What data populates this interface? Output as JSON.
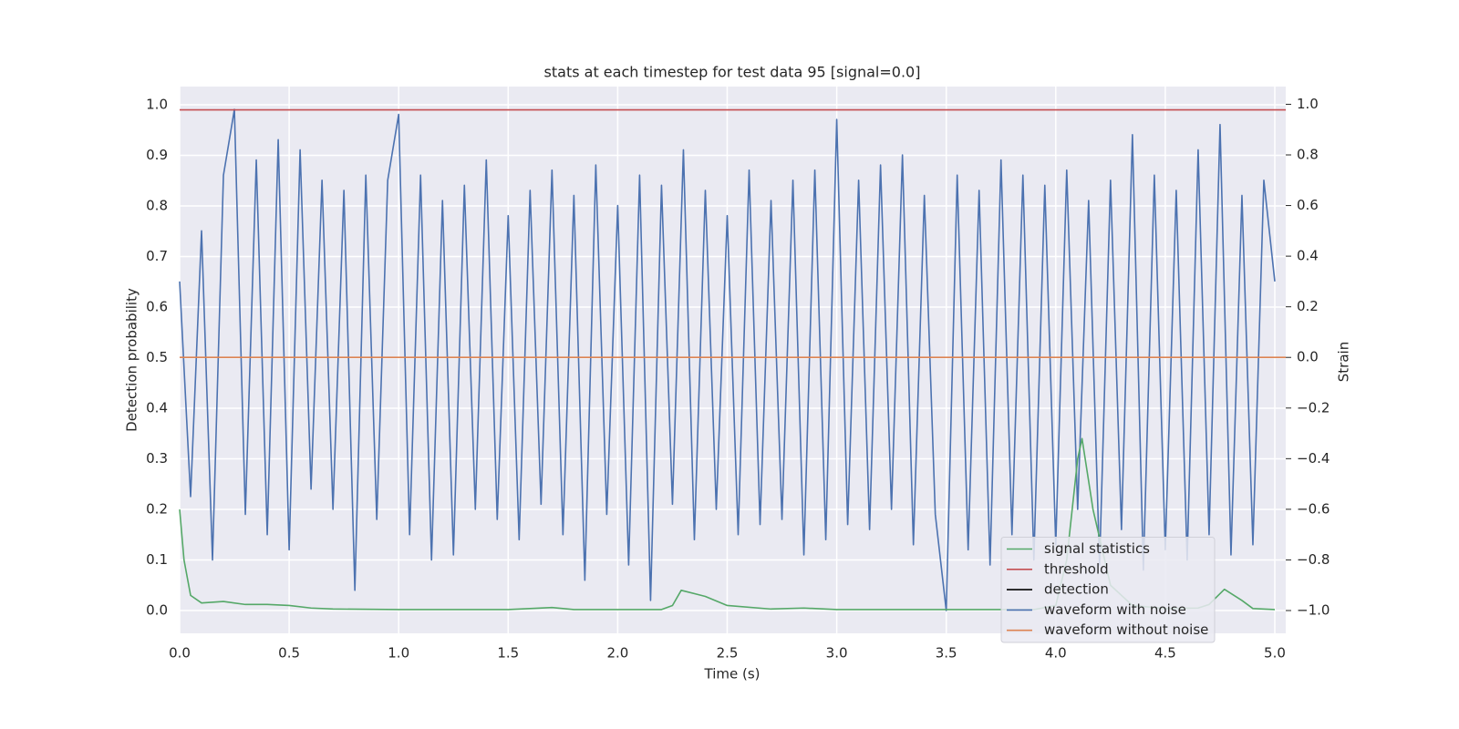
{
  "chart_data": {
    "type": "line",
    "title": "stats at each timestep for test data 95 [signal=0.0]",
    "xlabel": "Time (s)",
    "ylabel": "Detection probability",
    "y2label": "Strain",
    "xlim": [
      0,
      5.05
    ],
    "ylim": [
      -0.045,
      1.036
    ],
    "y2lim": [
      -1.09,
      1.07
    ],
    "xticks": [
      {
        "value": 0,
        "label": "0.0"
      },
      {
        "value": 0.5,
        "label": "0.5"
      },
      {
        "value": 1,
        "label": "1.0"
      },
      {
        "value": 1.5,
        "label": "1.5"
      },
      {
        "value": 2,
        "label": "2.0"
      },
      {
        "value": 2.5,
        "label": "2.5"
      },
      {
        "value": 3,
        "label": "3.0"
      },
      {
        "value": 3.5,
        "label": "3.5"
      },
      {
        "value": 4,
        "label": "4.0"
      },
      {
        "value": 4.5,
        "label": "4.5"
      },
      {
        "value": 5,
        "label": "5.0"
      }
    ],
    "yticks": [
      {
        "value": 0,
        "label": "0.0"
      },
      0.1,
      0.2,
      0.3,
      0.4,
      0.5,
      0.6,
      0.7,
      0.8,
      0.9,
      {
        "value": 1,
        "label": "1.0"
      }
    ],
    "y2ticks": [
      {
        "value": -1,
        "label": "−1.0"
      },
      {
        "value": -0.8,
        "label": "−0.8"
      },
      {
        "value": -0.6,
        "label": "−0.6"
      },
      {
        "value": -0.4,
        "label": "−0.4"
      },
      {
        "value": -0.2,
        "label": "−0.2"
      },
      {
        "value": 0,
        "label": "0.0"
      },
      0.2,
      0.4,
      0.6,
      0.8,
      {
        "value": 1,
        "label": "1.0"
      }
    ],
    "grid": true,
    "legend": "lower right",
    "series": [
      {
        "name": "signal statistics",
        "color": "#55a868",
        "x": [
          0,
          0.02,
          0.05,
          0.1,
          0.2,
          0.3,
          0.4,
          0.5,
          0.6,
          0.7,
          1.0,
          1.5,
          1.7,
          1.8,
          2.2,
          2.25,
          2.29,
          2.4,
          2.5,
          2.7,
          2.85,
          3.0,
          3.5,
          3.9,
          4.0,
          4.05,
          4.1,
          4.12,
          4.17,
          4.25,
          4.35,
          4.5,
          4.65,
          4.7,
          4.77,
          4.85,
          4.9,
          5.0
        ],
        "values": [
          0.2,
          0.1,
          0.03,
          0.015,
          0.018,
          0.012,
          0.012,
          0.01,
          0.005,
          0.003,
          0.002,
          0.002,
          0.006,
          0.002,
          0.002,
          0.01,
          0.04,
          0.028,
          0.01,
          0.003,
          0.005,
          0.002,
          0.002,
          0.002,
          0.01,
          0.1,
          0.3,
          0.34,
          0.2,
          0.05,
          0.01,
          0.004,
          0.005,
          0.012,
          0.042,
          0.02,
          0.004,
          0.002
        ]
      },
      {
        "name": "threshold",
        "color": "#c44e52",
        "hline": 0.99
      },
      {
        "name": "detection",
        "color": "#000000"
      },
      {
        "name": "waveform with noise",
        "color": "#4c72b0",
        "axis": "y2",
        "x": [
          0,
          0.05,
          0.1,
          0.15,
          0.2,
          0.25,
          0.3,
          0.35,
          0.4,
          0.45,
          0.5,
          0.55,
          0.6,
          0.65,
          0.7,
          0.75,
          0.8,
          0.85,
          0.9,
          0.95,
          1.0,
          1.05,
          1.1,
          1.15,
          1.2,
          1.25,
          1.3,
          1.35,
          1.4,
          1.45,
          1.5,
          1.55,
          1.6,
          1.65,
          1.7,
          1.75,
          1.8,
          1.85,
          1.9,
          1.95,
          2.0,
          2.05,
          2.1,
          2.15,
          2.2,
          2.25,
          2.3,
          2.35,
          2.4,
          2.45,
          2.5,
          2.55,
          2.6,
          2.65,
          2.7,
          2.75,
          2.8,
          2.85,
          2.9,
          2.95,
          3.0,
          3.05,
          3.1,
          3.15,
          3.2,
          3.25,
          3.3,
          3.35,
          3.4,
          3.45,
          3.5,
          3.55,
          3.6,
          3.65,
          3.7,
          3.75,
          3.8,
          3.85,
          3.9,
          3.95,
          4.0,
          4.05,
          4.1,
          4.15,
          4.2,
          4.25,
          4.3,
          4.35,
          4.4,
          4.45,
          4.5,
          4.55,
          4.6,
          4.65,
          4.7,
          4.75,
          4.8,
          4.85,
          4.9,
          4.95,
          5.0
        ],
        "values": [
          0.3,
          -0.55,
          0.5,
          -0.8,
          0.72,
          0.98,
          -0.62,
          0.78,
          -0.7,
          0.86,
          -0.76,
          0.82,
          -0.52,
          0.7,
          -0.6,
          0.66,
          -0.92,
          0.72,
          -0.64,
          0.7,
          0.96,
          -0.7,
          0.72,
          -0.8,
          0.62,
          -0.78,
          0.68,
          -0.6,
          0.78,
          -0.64,
          0.56,
          -0.72,
          0.66,
          -0.58,
          0.74,
          -0.7,
          0.64,
          -0.88,
          0.76,
          -0.62,
          0.6,
          -0.82,
          0.72,
          -0.96,
          0.68,
          -0.58,
          0.82,
          -0.72,
          0.66,
          -0.6,
          0.56,
          -0.7,
          0.74,
          -0.66,
          0.62,
          -0.64,
          0.7,
          -0.78,
          0.74,
          -0.72,
          0.94,
          -0.66,
          0.7,
          -0.68,
          0.76,
          -0.6,
          0.8,
          -0.74,
          0.64,
          -0.62,
          -1.0,
          0.72,
          -0.76,
          0.66,
          -0.82,
          0.78,
          -0.7,
          0.72,
          -0.8,
          0.68,
          -0.74,
          0.74,
          -0.6,
          0.62,
          -0.82,
          0.7,
          -0.68,
          0.88,
          -0.84,
          0.72,
          -0.76,
          0.66,
          -0.8,
          0.82,
          -0.7,
          0.92,
          -0.78,
          0.64,
          -0.74,
          0.7,
          0.3
        ]
      },
      {
        "name": "waveform without noise",
        "color": "#dd8452",
        "axis": "y2",
        "hline": 0
      }
    ]
  }
}
